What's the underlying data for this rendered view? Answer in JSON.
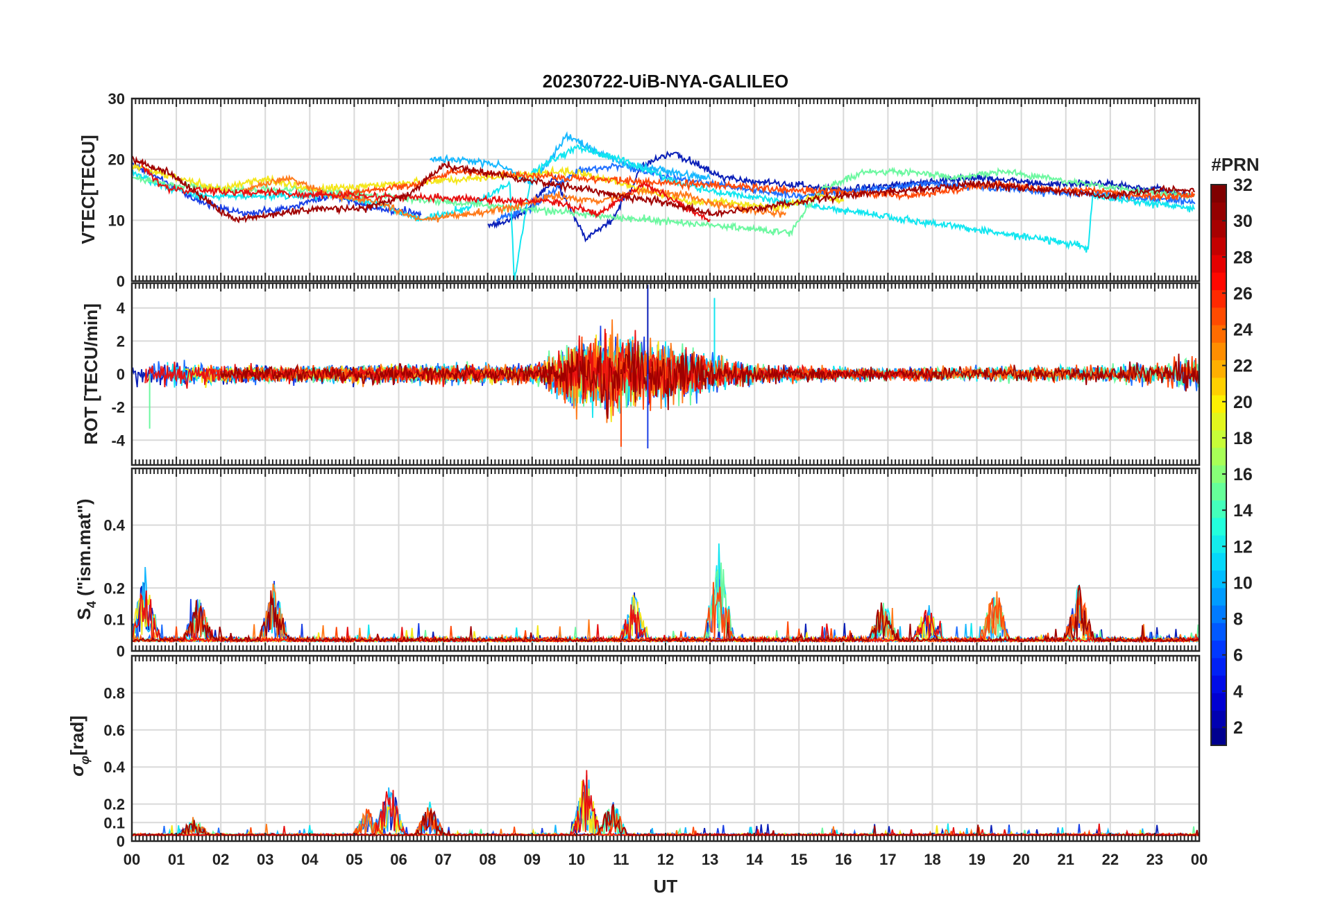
{
  "chart_data": {
    "type": "line",
    "title": "20230722-UiB-NYA-GALILEO",
    "xlabel": "UT",
    "x_ticks": [
      "00",
      "01",
      "02",
      "03",
      "04",
      "05",
      "06",
      "07",
      "08",
      "09",
      "10",
      "11",
      "12",
      "13",
      "14",
      "15",
      "16",
      "17",
      "18",
      "19",
      "20",
      "21",
      "22",
      "23",
      "00"
    ],
    "xlim": [
      0,
      24
    ],
    "colorbar": {
      "label": "#PRN",
      "range": [
        1,
        32
      ],
      "ticks": [
        "2",
        "4",
        "6",
        "8",
        "10",
        "12",
        "14",
        "16",
        "18",
        "20",
        "22",
        "24",
        "26",
        "28",
        "30",
        "32"
      ],
      "colors": [
        "#00008f",
        "#0000df",
        "#0030ff",
        "#0080ff",
        "#00cfff",
        "#20ffdf",
        "#70ff8f",
        "#bfff40",
        "#ffef00",
        "#ffa000",
        "#ff5000",
        "#ff0000",
        "#af0000",
        "#800000"
      ]
    },
    "series": [
      {
        "prn": 1,
        "color": "#0a1fb8"
      },
      {
        "prn": 3,
        "color": "#1a3fe6"
      },
      {
        "prn": 5,
        "color": "#1f6fff"
      },
      {
        "prn": 9,
        "color": "#18b8ff"
      },
      {
        "prn": 11,
        "color": "#12e6f0"
      },
      {
        "prn": 15,
        "color": "#6cf8a0"
      },
      {
        "prn": 19,
        "color": "#f4e61a"
      },
      {
        "prn": 23,
        "color": "#ff7a1a"
      },
      {
        "prn": 25,
        "color": "#ff4a0a"
      },
      {
        "prn": 27,
        "color": "#e81010"
      },
      {
        "prn": 30,
        "color": "#a00000"
      }
    ],
    "panels": [
      {
        "ylabel": "VTEC[TECU]",
        "ylim": [
          0,
          30
        ],
        "y_ticks": [
          "0",
          "10",
          "20",
          "30"
        ],
        "vtec_segments": [
          {
            "prn": 1,
            "x": [
              8.0,
              8.8,
              9.5,
              10.2,
              10.8,
              11.5,
              12.2,
              13.3,
              14.5,
              16.0,
              17.5,
              19.0,
              20.5,
              22.0,
              23.0,
              23.8
            ],
            "y": [
              9,
              11,
              17,
              7,
              10,
              19,
              21,
              17,
              16,
              15,
              16,
              17,
              16,
              16,
              15,
              14
            ]
          },
          {
            "prn": 3,
            "x": [
              0.0,
              0.6,
              1.5,
              2.5,
              3.5,
              4.5,
              5.5,
              6.5
            ],
            "y": [
              19,
              17,
              13,
              11,
              12,
              14,
              12,
              11
            ]
          },
          {
            "prn": 5,
            "x": [
              8.2,
              9.0,
              10.0,
              11.0,
              12.0,
              13.0,
              14.0,
              15.0,
              16.5,
              18.0,
              20.0,
              22.0,
              23.9
            ],
            "y": [
              10,
              12,
              18,
              19,
              17,
              16,
              15,
              14,
              15,
              16,
              15,
              14,
              13
            ]
          },
          {
            "prn": 9,
            "x": [
              6.7,
              7.5,
              8.3,
              9.0,
              9.8,
              10.5,
              11.2,
              12.0,
              13.0
            ],
            "y": [
              20,
              20,
              19,
              16,
              24,
              21,
              19,
              18,
              17
            ]
          },
          {
            "prn": 11,
            "x": [
              0.0,
              0.5,
              1.5,
              2.5,
              3.5,
              4.5,
              5.5,
              6.5,
              7.5,
              8.5,
              8.6,
              9.0,
              10.0,
              11.0,
              12.0,
              12.8,
              21.3,
              21.5,
              21.6,
              22.5,
              23.9
            ],
            "y": [
              18,
              16,
              14,
              14,
              14,
              14,
              13,
              10,
              12,
              16,
              0,
              18,
              22,
              20,
              17,
              15,
              6,
              5,
              14,
              13,
              12
            ]
          },
          {
            "prn": 15,
            "x": [
              0.0,
              0.8,
              2.0,
              3.0,
              4.0,
              14.8,
              15.5,
              16.5,
              17.5,
              18.5,
              19.5,
              20.5,
              21.5,
              22.5,
              23.9
            ],
            "y": [
              17,
              16,
              15,
              15,
              15,
              8,
              15,
              18,
              18,
              17,
              18,
              17,
              16,
              15,
              14
            ]
          },
          {
            "prn": 19,
            "x": [
              0.0,
              1.0,
              2.0,
              3.0,
              4.0,
              9.8,
              10.5,
              11.5,
              12.5,
              13.5,
              14.5,
              15.5,
              16.0
            ],
            "y": [
              19,
              17,
              15,
              17,
              15,
              18,
              17,
              15,
              13,
              13,
              12,
              14,
              13
            ]
          },
          {
            "prn": 23,
            "x": [
              2.5,
              3.5,
              4.5,
              5.5,
              6.5,
              7.5,
              8.5,
              9.5,
              10.5,
              11.5,
              12.5,
              13.5,
              14.7
            ],
            "y": [
              15,
              17,
              14,
              13,
              10,
              11,
              12,
              14,
              13,
              15,
              14,
              12,
              11
            ]
          },
          {
            "prn": 25,
            "x": [
              4.5,
              5.5,
              6.5,
              7.2,
              17.5,
              18.5,
              19.5,
              20.5,
              21.5,
              22.5,
              23.9
            ],
            "y": [
              14,
              15,
              16,
              18,
              14,
              15,
              16,
              15,
              15,
              14,
              14
            ]
          },
          {
            "prn": 27,
            "x": [
              0.1,
              0.6,
              1.0,
              9.5,
              10.5,
              11.5,
              12.5,
              13.0
            ],
            "y": [
              20,
              16,
              15,
              13,
              11,
              16,
              12,
              10
            ]
          },
          {
            "prn": 30,
            "x": [
              0.0,
              0.8,
              2.3,
              3.2,
              4.2,
              5.2,
              6.2,
              7.0,
              11.0,
              12.0,
              13.0,
              16.0,
              17.5,
              19.0,
              20.5,
              22.0,
              23.0,
              23.9
            ],
            "y": [
              20,
              18,
              10,
              11,
              12,
              12,
              14,
              19,
              14,
              13,
              11,
              14,
              15,
              16,
              15,
              14,
              15,
              15
            ]
          }
        ]
      },
      {
        "ylabel": "ROT [TECU/min]",
        "ylim": [
          -5.5,
          5.5
        ],
        "y_ticks": [
          "-4",
          "-2",
          "0",
          "2",
          "4"
        ],
        "noise_envelope": {
          "x": [
            0,
            3,
            5,
            7,
            9,
            9.5,
            10,
            11,
            12,
            13,
            14,
            15,
            17,
            19,
            21,
            23,
            24
          ],
          "amplitude": [
            1.5,
            0.8,
            1.0,
            1.0,
            1.0,
            2.0,
            4.0,
            4.5,
            3.5,
            2.0,
            1.0,
            0.8,
            0.6,
            0.8,
            0.8,
            1.2,
            2.0
          ]
        },
        "spikes": [
          {
            "x": 11.6,
            "y": 5.4
          },
          {
            "x": 13.1,
            "y": 4.6
          },
          {
            "x": 11.0,
            "y": -4.4
          },
          {
            "x": 11.6,
            "y": -4.5
          },
          {
            "x": 0.4,
            "y": -3.3
          }
        ]
      },
      {
        "ylabel": "S4 (\"ism.mat\")",
        "ylabel_main": "S",
        "ylabel_sub": "4",
        "ylabel_tail": "  (\"ism.mat\")",
        "ylim": [
          0,
          0.58
        ],
        "y_ticks": [
          "0",
          "0.1",
          "0.2",
          "0.4"
        ],
        "y_tick_values": [
          0,
          0.1,
          0.2,
          0.4
        ],
        "baseline": 0.03,
        "peaks": [
          {
            "x": 0.3,
            "y": 0.25
          },
          {
            "x": 1.5,
            "y": 0.17
          },
          {
            "x": 3.2,
            "y": 0.22
          },
          {
            "x": 11.3,
            "y": 0.17
          },
          {
            "x": 13.2,
            "y": 0.32
          },
          {
            "x": 16.9,
            "y": 0.16
          },
          {
            "x": 17.9,
            "y": 0.14
          },
          {
            "x": 19.4,
            "y": 0.2
          },
          {
            "x": 21.3,
            "y": 0.2
          }
        ]
      },
      {
        "ylabel": "σφ[rad]",
        "ylabel_main": "σ",
        "ylabel_sub": "φ",
        "ylabel_tail": "[rad]",
        "ylim": [
          0,
          1.0
        ],
        "y_ticks": [
          "0",
          "0.1",
          "0.2",
          "0.4",
          "0.6",
          "0.8"
        ],
        "y_tick_values": [
          0,
          0.1,
          0.2,
          0.4,
          0.6,
          0.8
        ],
        "baseline": 0.03,
        "peaks": [
          {
            "x": 5.8,
            "y": 0.33
          },
          {
            "x": 5.3,
            "y": 0.17
          },
          {
            "x": 6.7,
            "y": 0.2
          },
          {
            "x": 10.2,
            "y": 0.37
          },
          {
            "x": 10.8,
            "y": 0.22
          },
          {
            "x": 1.4,
            "y": 0.13
          }
        ]
      }
    ]
  }
}
